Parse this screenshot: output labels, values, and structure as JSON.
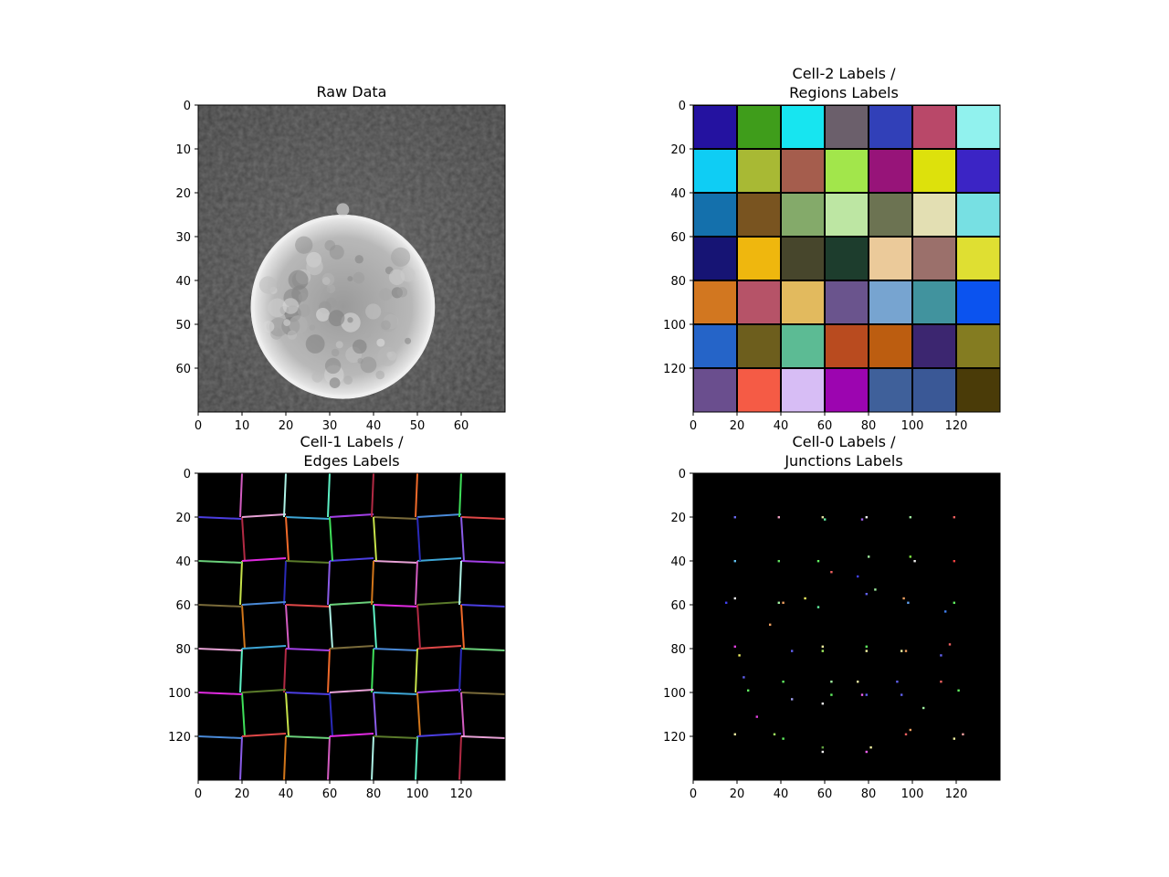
{
  "chart_data": [
    {
      "type": "heatmap",
      "title": "Raw Data",
      "xlim": [
        0,
        70
      ],
      "ylim": [
        70,
        0
      ],
      "xticks": [
        "0",
        "10",
        "20",
        "30",
        "40",
        "50",
        "60"
      ],
      "yticks": [
        "0",
        "10",
        "20",
        "30",
        "40",
        "50",
        "60"
      ],
      "colormap": "gray",
      "content": "grayscale image of a coin on a dark background",
      "coin": {
        "center_x": 33,
        "center_y": 46,
        "radius": 21,
        "bump": {
          "x": 33,
          "y": 23
        }
      }
    },
    {
      "type": "heatmap",
      "title_lines": [
        "Cell-2 Labels /",
        "Regions Labels"
      ],
      "xlim": [
        0,
        140
      ],
      "ylim": [
        140,
        0
      ],
      "xticks": [
        "0",
        "20",
        "40",
        "60",
        "80",
        "100",
        "120"
      ],
      "yticks": [
        "0",
        "20",
        "40",
        "60",
        "80",
        "100",
        "120"
      ],
      "grid_cells": 7,
      "region_colors": [
        [
          "#2412a0",
          "#3f9d1b",
          "#17e5f0",
          "#6b5f6b",
          "#3140b8",
          "#b94869",
          "#91f2ee"
        ],
        [
          "#0fcdf4",
          "#a8b934",
          "#a55d4d",
          "#a2e64b",
          "#971479",
          "#dde10c",
          "#3b24c5"
        ],
        [
          "#1470ac",
          "#795420",
          "#84aa6a",
          "#bde6a3",
          "#6c7352",
          "#e3dfb3",
          "#77e0e3"
        ],
        [
          "#161474",
          "#efb70e",
          "#47462c",
          "#1d3d2d",
          "#ebca9a",
          "#9b706b",
          "#dfdf32"
        ],
        [
          "#d27720",
          "#b65368",
          "#e2ba5e",
          "#6a548d",
          "#77a4d0",
          "#41939e",
          "#0b53ef"
        ],
        [
          "#2564c8",
          "#6d5e1d",
          "#5cbb94",
          "#b94b1f",
          "#bc5d10",
          "#3c2670",
          "#847c21"
        ],
        [
          "#6a4e8e",
          "#f55b45",
          "#d7bdf5",
          "#9c05b0",
          "#3f609a",
          "#3a5896",
          "#4a3b08"
        ]
      ]
    },
    {
      "type": "heatmap",
      "title_lines": [
        "Cell-1 Labels /",
        "Edges Labels"
      ],
      "xlim": [
        0,
        140
      ],
      "ylim": [
        140,
        0
      ],
      "xticks": [
        "0",
        "20",
        "40",
        "60",
        "80",
        "100",
        "120"
      ],
      "yticks": [
        "0",
        "20",
        "40",
        "60",
        "80",
        "100",
        "120"
      ],
      "background": "#000000",
      "edge_colors": [
        "#d35cc1",
        "#4b3ee0",
        "#b22a44",
        "#e8a2d6",
        "#c6e24a",
        "#3ea6d6",
        "#d2761a",
        "#a23fe6",
        "#5df0c4",
        "#7a6b3a",
        "#3fe05a",
        "#4a8ad8",
        "#8a5ce8",
        "#e04848",
        "#aef2e6",
        "#6ad07a",
        "#f06a2a",
        "#e02ae0",
        "#2a2ab8",
        "#5a7a2a"
      ]
    },
    {
      "type": "scatter",
      "title_lines": [
        "Cell-0 Labels /",
        "Junctions Labels"
      ],
      "xlim": [
        0,
        140
      ],
      "ylim": [
        140,
        0
      ],
      "xticks": [
        "0",
        "20",
        "40",
        "60",
        "80",
        "100",
        "120"
      ],
      "yticks": [
        "0",
        "20",
        "40",
        "60",
        "80",
        "100",
        "120"
      ],
      "background": "#000000",
      "points": [
        {
          "x": 19,
          "y": 20,
          "c": "#6a6af0"
        },
        {
          "x": 39,
          "y": 20,
          "c": "#f0a0c0"
        },
        {
          "x": 59,
          "y": 20,
          "c": "#e0e0a0"
        },
        {
          "x": 60,
          "y": 21,
          "c": "#60f0a0"
        },
        {
          "x": 79,
          "y": 20,
          "c": "#f0f0f0"
        },
        {
          "x": 77,
          "y": 21,
          "c": "#a060f0"
        },
        {
          "x": 99,
          "y": 20,
          "c": "#a0f0a0"
        },
        {
          "x": 119,
          "y": 20,
          "c": "#f06060"
        },
        {
          "x": 19,
          "y": 40,
          "c": "#60c0f0"
        },
        {
          "x": 39,
          "y": 40,
          "c": "#60e060"
        },
        {
          "x": 57,
          "y": 40,
          "c": "#60f060"
        },
        {
          "x": 63,
          "y": 45,
          "c": "#f06060"
        },
        {
          "x": 80,
          "y": 38,
          "c": "#a0f0a0"
        },
        {
          "x": 99,
          "y": 38,
          "c": "#80f040"
        },
        {
          "x": 101,
          "y": 40,
          "c": "#f0f0f0"
        },
        {
          "x": 119,
          "y": 40,
          "c": "#f04040"
        },
        {
          "x": 75,
          "y": 47,
          "c": "#4040f0"
        },
        {
          "x": 83,
          "y": 53,
          "c": "#a0f0a0"
        },
        {
          "x": 79,
          "y": 55,
          "c": "#6060f0"
        },
        {
          "x": 15,
          "y": 59,
          "c": "#4040f0"
        },
        {
          "x": 19,
          "y": 57,
          "c": "#f0f0f0"
        },
        {
          "x": 39,
          "y": 59,
          "c": "#a0f0a0"
        },
        {
          "x": 41,
          "y": 59,
          "c": "#f0a060"
        },
        {
          "x": 51,
          "y": 57,
          "c": "#f0f060"
        },
        {
          "x": 57,
          "y": 61,
          "c": "#60f0a0"
        },
        {
          "x": 96,
          "y": 57,
          "c": "#f0a060"
        },
        {
          "x": 98,
          "y": 59,
          "c": "#60a0f0"
        },
        {
          "x": 119,
          "y": 59,
          "c": "#60f060"
        },
        {
          "x": 115,
          "y": 63,
          "c": "#4080f0"
        },
        {
          "x": 35,
          "y": 69,
          "c": "#f0a060"
        },
        {
          "x": 19,
          "y": 79,
          "c": "#e040e0"
        },
        {
          "x": 21,
          "y": 83,
          "c": "#f0f060"
        },
        {
          "x": 45,
          "y": 81,
          "c": "#6060f0"
        },
        {
          "x": 59,
          "y": 79,
          "c": "#f0f0a0"
        },
        {
          "x": 59,
          "y": 81,
          "c": "#a0f060"
        },
        {
          "x": 79,
          "y": 79,
          "c": "#60f060"
        },
        {
          "x": 79,
          "y": 81,
          "c": "#f0f0a0"
        },
        {
          "x": 95,
          "y": 81,
          "c": "#f0f0a0"
        },
        {
          "x": 97,
          "y": 81,
          "c": "#f0a060"
        },
        {
          "x": 113,
          "y": 83,
          "c": "#6060f0"
        },
        {
          "x": 117,
          "y": 78,
          "c": "#f06060"
        },
        {
          "x": 23,
          "y": 93,
          "c": "#6060f0"
        },
        {
          "x": 41,
          "y": 95,
          "c": "#60f060"
        },
        {
          "x": 63,
          "y": 95,
          "c": "#a0f0a0"
        },
        {
          "x": 75,
          "y": 95,
          "c": "#f0f0a0"
        },
        {
          "x": 93,
          "y": 95,
          "c": "#6060f0"
        },
        {
          "x": 113,
          "y": 95,
          "c": "#f06060"
        },
        {
          "x": 25,
          "y": 99,
          "c": "#60f060"
        },
        {
          "x": 45,
          "y": 103,
          "c": "#a0a0f0"
        },
        {
          "x": 59,
          "y": 105,
          "c": "#f0f0f0"
        },
        {
          "x": 63,
          "y": 101,
          "c": "#60f060"
        },
        {
          "x": 77,
          "y": 101,
          "c": "#f060f0"
        },
        {
          "x": 79,
          "y": 101,
          "c": "#6060f0"
        },
        {
          "x": 95,
          "y": 101,
          "c": "#6060f0"
        },
        {
          "x": 105,
          "y": 107,
          "c": "#a0f0a0"
        },
        {
          "x": 121,
          "y": 99,
          "c": "#60f060"
        },
        {
          "x": 29,
          "y": 111,
          "c": "#e040e0"
        },
        {
          "x": 19,
          "y": 119,
          "c": "#f0f0a0"
        },
        {
          "x": 37,
          "y": 119,
          "c": "#a0f060"
        },
        {
          "x": 41,
          "y": 121,
          "c": "#60f060"
        },
        {
          "x": 59,
          "y": 125,
          "c": "#60a040"
        },
        {
          "x": 59,
          "y": 127,
          "c": "#f0f0f0"
        },
        {
          "x": 79,
          "y": 127,
          "c": "#f060f0"
        },
        {
          "x": 81,
          "y": 125,
          "c": "#f0f0a0"
        },
        {
          "x": 97,
          "y": 119,
          "c": "#f06060"
        },
        {
          "x": 99,
          "y": 117,
          "c": "#f0a060"
        },
        {
          "x": 119,
          "y": 121,
          "c": "#f0f0a0"
        },
        {
          "x": 123,
          "y": 119,
          "c": "#f0a0a0"
        }
      ]
    }
  ]
}
